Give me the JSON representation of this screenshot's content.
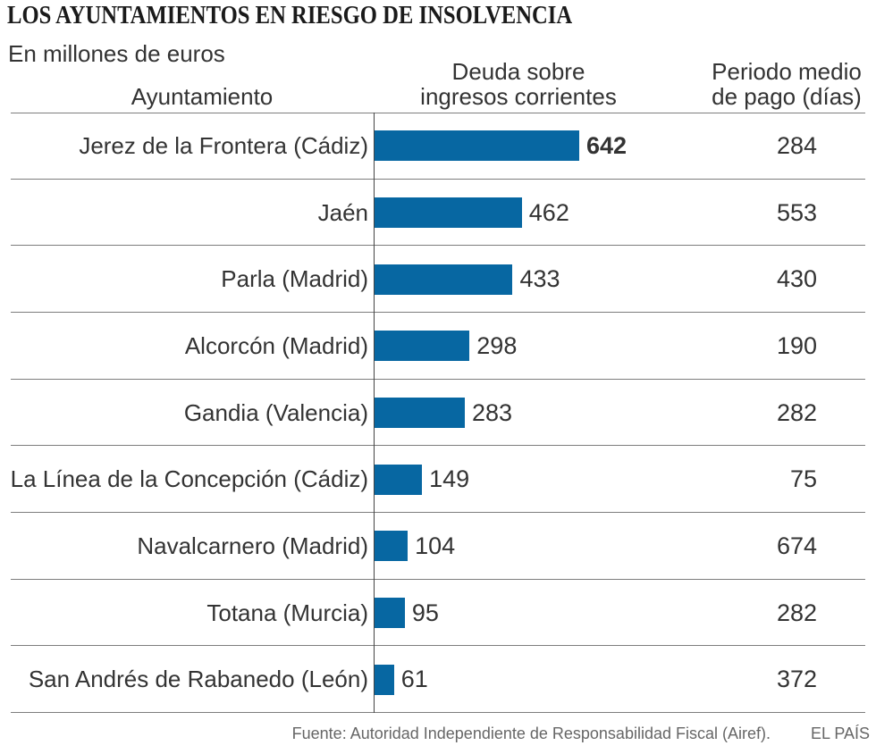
{
  "footer": {
    "source": "Fuente: Autoridad Independiente de Responsabilidad Fiscal (Airef).",
    "brand": "EL PAÍS"
  },
  "colors": {
    "bar": "#0767a2",
    "text": "#333333",
    "title": "#1a1a1a",
    "rule": "#7d7d7d",
    "footer": "#666666"
  },
  "chart_data": {
    "type": "bar",
    "orientation": "horizontal",
    "grid": false,
    "title": "LOS AYUNTAMIENTOS EN RIESGO DE INSOLVENCIA",
    "subtitle": "En millones de euros",
    "category_header": "Ayuntamiento",
    "categories": [
      "Jerez de la Frontera (Cádiz)",
      "Jaén",
      "Parla (Madrid)",
      "Alcorcón (Madrid)",
      "Gandia (Valencia)",
      "La Línea de la Concepción (Cádiz)",
      "Navalcarnero (Madrid)",
      "Totana (Murcia)",
      "San Andrés de Rabanedo (León)"
    ],
    "series": [
      {
        "header": [
          "Deuda sobre",
          "ingresos corrientes"
        ],
        "values": [
          642,
          462,
          433,
          298,
          283,
          149,
          104,
          95,
          61
        ]
      }
    ],
    "table_column": {
      "header": [
        "Periodo medio",
        "de pago (días)"
      ],
      "values": [
        284,
        553,
        430,
        190,
        282,
        75,
        674,
        282,
        372
      ]
    }
  }
}
